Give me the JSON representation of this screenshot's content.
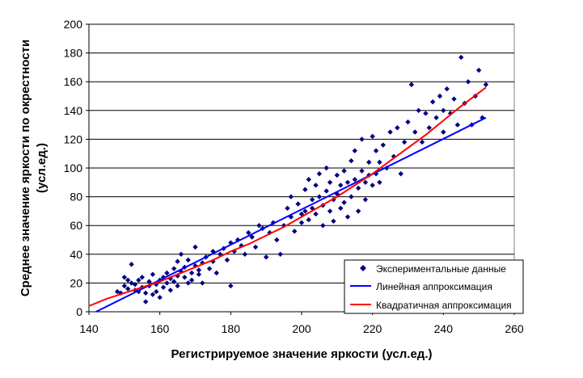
{
  "chart_data": {
    "type": "scatter",
    "title": "",
    "xlabel": "Регистрируемое значение яркости (усл.ед.)",
    "ylabel_lines": [
      "Среднее значение яркости по окрестности",
      "(усл.ед.)"
    ],
    "xlim": [
      140,
      260
    ],
    "ylim": [
      0,
      200
    ],
    "xticks": [
      140,
      160,
      180,
      200,
      220,
      240,
      260
    ],
    "yticks": [
      0,
      20,
      40,
      60,
      80,
      100,
      120,
      140,
      160,
      180,
      200
    ],
    "grid": {
      "horizontal": true,
      "vertical": false
    },
    "legend_position": "bottom-right",
    "colors": {
      "points": "#000080",
      "linear": "#0000FF",
      "quadratic": "#FF0000",
      "grid": "#000000",
      "plot_border": "#808080"
    },
    "series": [
      {
        "name": "Экспериментальные данные",
        "kind": "points",
        "marker": "diamond",
        "points": [
          [
            148,
            14
          ],
          [
            149,
            13
          ],
          [
            150,
            24
          ],
          [
            150,
            18
          ],
          [
            151,
            16
          ],
          [
            151,
            22
          ],
          [
            152,
            20
          ],
          [
            152,
            33
          ],
          [
            153,
            15
          ],
          [
            153,
            19
          ],
          [
            154,
            14
          ],
          [
            154,
            22
          ],
          [
            155,
            17
          ],
          [
            155,
            24
          ],
          [
            156,
            13
          ],
          [
            156,
            7
          ],
          [
            157,
            18
          ],
          [
            157,
            21
          ],
          [
            158,
            12
          ],
          [
            158,
            26
          ],
          [
            159,
            14
          ],
          [
            159,
            19
          ],
          [
            160,
            22
          ],
          [
            160,
            10
          ],
          [
            161,
            24
          ],
          [
            161,
            17
          ],
          [
            162,
            20
          ],
          [
            162,
            27
          ],
          [
            163,
            23
          ],
          [
            163,
            15
          ],
          [
            164,
            30
          ],
          [
            164,
            21
          ],
          [
            165,
            35
          ],
          [
            165,
            25
          ],
          [
            165,
            18
          ],
          [
            166,
            28
          ],
          [
            166,
            40
          ],
          [
            167,
            24
          ],
          [
            167,
            31
          ],
          [
            168,
            20
          ],
          [
            168,
            36
          ],
          [
            169,
            27
          ],
          [
            169,
            22
          ],
          [
            170,
            32
          ],
          [
            170,
            45
          ],
          [
            171,
            29
          ],
          [
            171,
            26
          ],
          [
            172,
            34
          ],
          [
            172,
            20
          ],
          [
            173,
            38
          ],
          [
            174,
            30
          ],
          [
            175,
            42
          ],
          [
            175,
            35
          ],
          [
            176,
            27
          ],
          [
            177,
            40
          ],
          [
            178,
            44
          ],
          [
            179,
            36
          ],
          [
            180,
            18
          ],
          [
            180,
            48
          ],
          [
            181,
            42
          ],
          [
            182,
            50
          ],
          [
            183,
            46
          ],
          [
            184,
            40
          ],
          [
            185,
            55
          ],
          [
            186,
            52
          ],
          [
            187,
            45
          ],
          [
            188,
            60
          ],
          [
            189,
            58
          ],
          [
            190,
            38
          ],
          [
            191,
            55
          ],
          [
            192,
            62
          ],
          [
            193,
            50
          ],
          [
            194,
            40
          ],
          [
            195,
            60
          ],
          [
            196,
            72
          ],
          [
            197,
            80
          ],
          [
            197,
            66
          ],
          [
            198,
            56
          ],
          [
            199,
            75
          ],
          [
            200,
            68
          ],
          [
            200,
            62
          ],
          [
            201,
            85
          ],
          [
            201,
            70
          ],
          [
            202,
            92
          ],
          [
            202,
            64
          ],
          [
            203,
            78
          ],
          [
            203,
            72
          ],
          [
            204,
            88
          ],
          [
            204,
            68
          ],
          [
            205,
            80
          ],
          [
            205,
            96
          ],
          [
            206,
            74
          ],
          [
            206,
            60
          ],
          [
            207,
            84
          ],
          [
            207,
            100
          ],
          [
            208,
            70
          ],
          [
            208,
            90
          ],
          [
            209,
            78
          ],
          [
            209,
            63
          ],
          [
            210,
            95
          ],
          [
            210,
            82
          ],
          [
            211,
            72
          ],
          [
            211,
            88
          ],
          [
            212,
            98
          ],
          [
            212,
            76
          ],
          [
            213,
            90
          ],
          [
            213,
            66
          ],
          [
            214,
            105
          ],
          [
            214,
            80
          ],
          [
            215,
            92
          ],
          [
            215,
            112
          ],
          [
            216,
            86
          ],
          [
            216,
            70
          ],
          [
            217,
            98
          ],
          [
            217,
            120
          ],
          [
            218,
            90
          ],
          [
            218,
            78
          ],
          [
            219,
            104
          ],
          [
            219,
            95
          ],
          [
            220,
            122
          ],
          [
            220,
            88
          ],
          [
            221,
            112
          ],
          [
            221,
            96
          ],
          [
            222,
            104
          ],
          [
            222,
            90
          ],
          [
            223,
            116
          ],
          [
            224,
            100
          ],
          [
            225,
            125
          ],
          [
            226,
            108
          ],
          [
            227,
            128
          ],
          [
            228,
            96
          ],
          [
            229,
            118
          ],
          [
            230,
            132
          ],
          [
            231,
            158
          ],
          [
            232,
            125
          ],
          [
            233,
            140
          ],
          [
            234,
            118
          ],
          [
            235,
            138
          ],
          [
            236,
            128
          ],
          [
            237,
            146
          ],
          [
            238,
            135
          ],
          [
            239,
            150
          ],
          [
            240,
            140
          ],
          [
            240,
            125
          ],
          [
            241,
            155
          ],
          [
            242,
            138
          ],
          [
            243,
            148
          ],
          [
            244,
            130
          ],
          [
            245,
            177
          ],
          [
            246,
            145
          ],
          [
            247,
            160
          ],
          [
            248,
            130
          ],
          [
            249,
            150
          ],
          [
            250,
            168
          ],
          [
            251,
            135
          ],
          [
            252,
            158
          ]
        ]
      },
      {
        "name": "Линейная аппроксимация",
        "kind": "line",
        "x": [
          142,
          252
        ],
        "y": [
          0,
          135
        ]
      },
      {
        "name": "Квадратичная аппроксимация",
        "kind": "curve",
        "x": [
          140,
          145,
          150,
          155,
          160,
          165,
          170,
          175,
          180,
          185,
          190,
          195,
          200,
          205,
          210,
          215,
          220,
          225,
          230,
          235,
          240,
          245,
          252
        ],
        "y": [
          4,
          9,
          13,
          17,
          21,
          26,
          31,
          36,
          42,
          47,
          53,
          59,
          66,
          73,
          80,
          88,
          96,
          105,
          114,
          123,
          133,
          143,
          156
        ]
      }
    ]
  }
}
